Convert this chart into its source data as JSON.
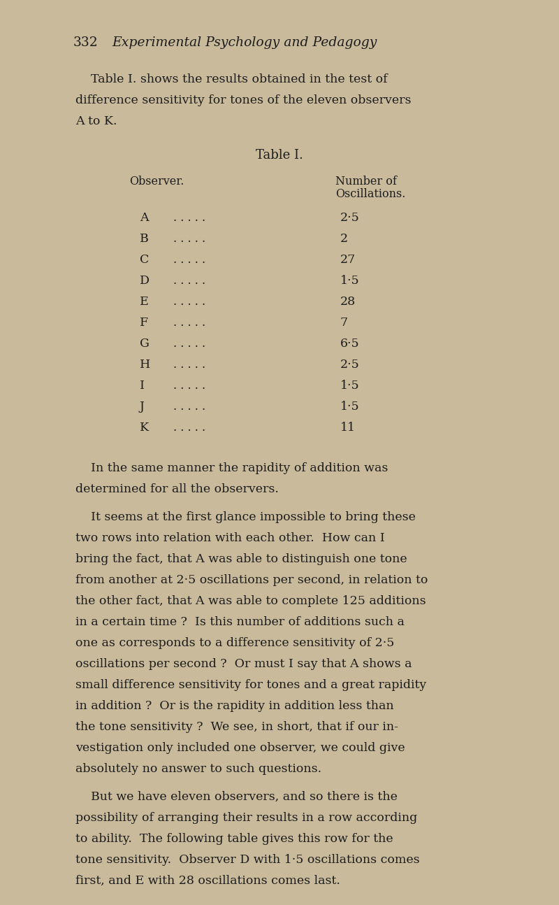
{
  "bg_color": "#c9ba9b",
  "text_color": "#1c1c1c",
  "page_number": "332",
  "header_italic": "Experimental Psychology and Pedagogy",
  "para1_indent": "    Table I. shows the results obtained in the test of",
  "para1_line2": "difference sensitivity for tones of the eleven observers",
  "para1_line3": "A to K.",
  "table_title": "Table I.",
  "table_col1_header": "Observer.",
  "table_col2_line1": "Number of",
  "table_col2_line2": "Oscillations.",
  "table_observers": [
    "A",
    "B",
    "C",
    "D",
    "E",
    "F",
    "G",
    "H",
    "I",
    "J",
    "K"
  ],
  "table_values": [
    "2·5",
    "2",
    "27",
    "1·5",
    "28",
    "7",
    "6·5",
    "2·5",
    "1·5",
    "1·5",
    "11"
  ],
  "para2_line1": "    In the same manner the rapidity of addition was",
  "para2_line2": "determined for all the observers.",
  "para3_line1": "    It seems at the first glance impossible to bring these",
  "para3_lines": [
    "two rows into relation with each other.  How can I",
    "bring the fact, that A was able to distinguish one tone",
    "from another at 2·5 oscillations per second, in relation to",
    "the other fact, that A was able to complete 125 additions",
    "in a certain time ?  Is this number of additions such a",
    "one as corresponds to a difference sensitivity of 2·5",
    "oscillations per second ?  Or must I say that A shows a",
    "small difference sensitivity for tones and a great rapidity",
    "in addition ?  Or is the rapidity in addition less than",
    "the tone sensitivity ?  We see, in short, that if our in-",
    "vestigation only included one observer, we could give",
    "absolutely no answer to such questions."
  ],
  "para4_line1": "    But we have eleven observers, and so there is the",
  "para4_lines": [
    "possibility of arranging their results in a row according",
    "to ability.  The following table gives this row for the",
    "tone sensitivity.  Observer D with 1·5 oscillations comes",
    "first, and E with 28 oscillations comes last."
  ],
  "figwidth": 8.0,
  "figheight": 12.94,
  "dpi": 100
}
